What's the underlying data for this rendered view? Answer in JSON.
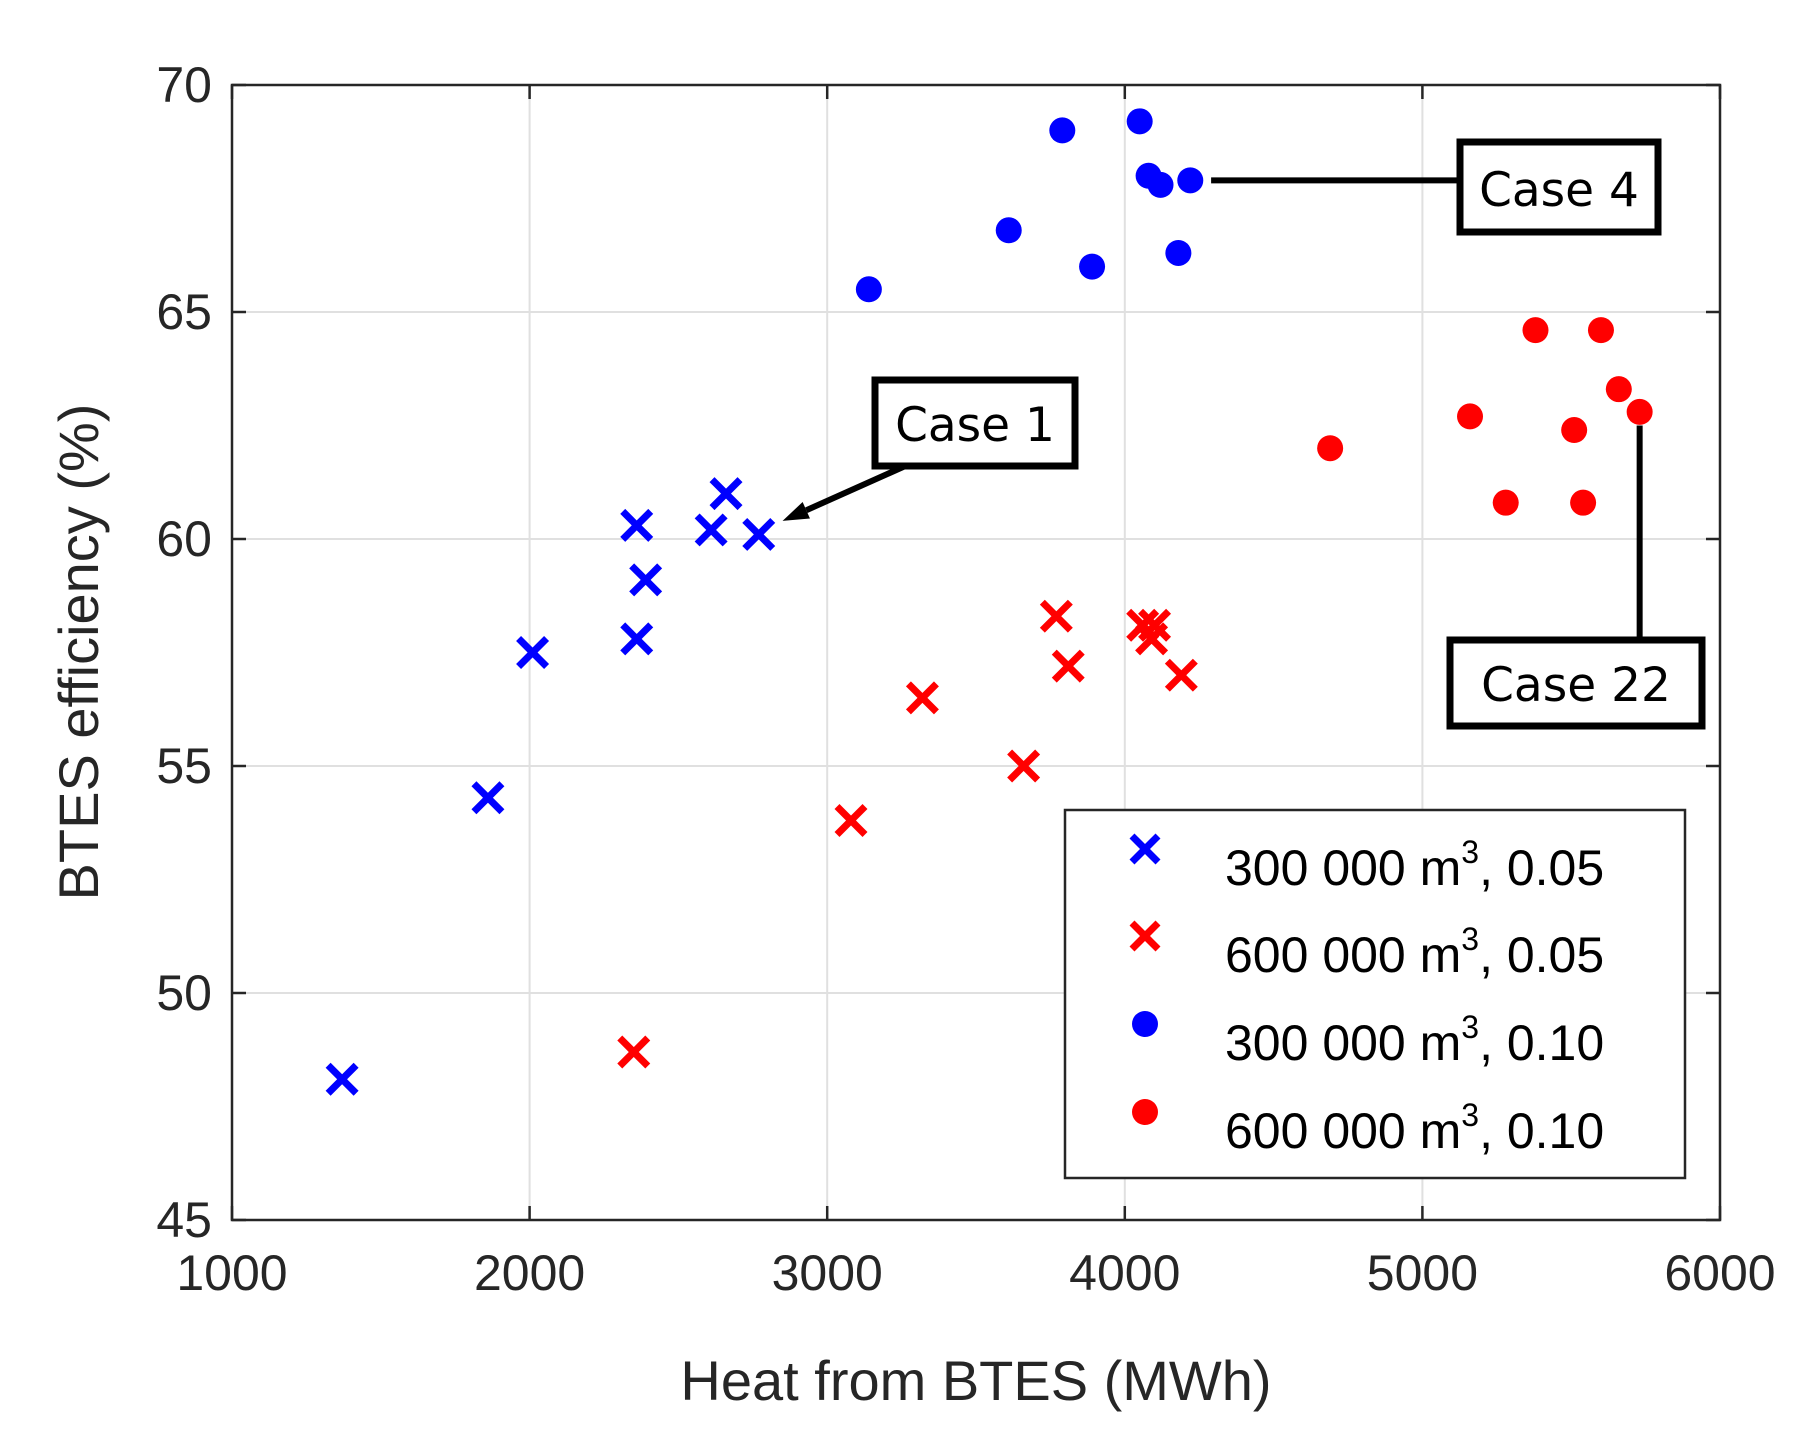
{
  "chart_data": {
    "type": "scatter",
    "title": "",
    "xlabel": "Heat from BTES (MWh)",
    "ylabel": "BTES efficiency (%)",
    "xlim": [
      1000,
      6000
    ],
    "ylim": [
      45,
      70
    ],
    "xticks": [
      1000,
      2000,
      3000,
      4000,
      5000,
      6000
    ],
    "yticks": [
      45,
      50,
      55,
      60,
      65,
      70
    ],
    "xtick_labels": [
      "1000",
      "2000",
      "3000",
      "4000",
      "5000",
      "6000"
    ],
    "ytick_labels": [
      "45",
      "50",
      "55",
      "60",
      "65",
      "70"
    ],
    "grid": true,
    "legend_position": "bottom-right",
    "series": [
      {
        "name": "300 000 m3, 0.05",
        "label_main": "300 000 m",
        "label_sup": "3",
        "label_tail": ", 0.05",
        "marker": "x",
        "color": "#0000ff",
        "points": [
          [
            1370,
            48.1
          ],
          [
            1860,
            54.3
          ],
          [
            2010,
            57.5
          ],
          [
            2360,
            57.8
          ],
          [
            2390,
            59.1
          ],
          [
            2360,
            60.3
          ],
          [
            2610,
            60.2
          ],
          [
            2660,
            61.0
          ],
          [
            2770,
            60.1
          ]
        ]
      },
      {
        "name": "600 000 m3, 0.05",
        "label_main": "600 000 m",
        "label_sup": "3",
        "label_tail": ", 0.05",
        "marker": "x",
        "color": "#ff0000",
        "points": [
          [
            2350,
            48.7
          ],
          [
            3080,
            53.8
          ],
          [
            3320,
            56.5
          ],
          [
            3660,
            55.0
          ],
          [
            3770,
            58.3
          ],
          [
            3810,
            57.2
          ],
          [
            4060,
            58.1
          ],
          [
            4090,
            57.8
          ],
          [
            4100,
            58.1
          ],
          [
            4190,
            57.0
          ]
        ]
      },
      {
        "name": "300 000 m3, 0.10",
        "label_main": "300 000 m",
        "label_sup": "3",
        "label_tail": ", 0.10",
        "marker": "o",
        "color": "#0000ff",
        "points": [
          [
            3140,
            65.5
          ],
          [
            3610,
            66.8
          ],
          [
            3790,
            69.0
          ],
          [
            3890,
            66.0
          ],
          [
            4050,
            69.2
          ],
          [
            4080,
            68.0
          ],
          [
            4120,
            67.8
          ],
          [
            4180,
            66.3
          ],
          [
            4220,
            67.9
          ]
        ]
      },
      {
        "name": "600 000 m3, 0.10",
        "label_main": "600 000 m",
        "label_sup": "3",
        "label_tail": ", 0.10",
        "marker": "o",
        "color": "#ff0000",
        "points": [
          [
            4690,
            62.0
          ],
          [
            5160,
            62.7
          ],
          [
            5280,
            60.8
          ],
          [
            5380,
            64.6
          ],
          [
            5510,
            62.4
          ],
          [
            5540,
            60.8
          ],
          [
            5600,
            64.6
          ],
          [
            5660,
            63.3
          ],
          [
            5730,
            62.8
          ]
        ]
      }
    ],
    "annotations": [
      {
        "text": "Case 1",
        "point": [
          2850,
          60.4
        ]
      },
      {
        "text": "Case 4",
        "point": [
          4290,
          67.9
        ]
      },
      {
        "text": "Case 22",
        "point": [
          5730,
          62.5
        ]
      }
    ]
  }
}
